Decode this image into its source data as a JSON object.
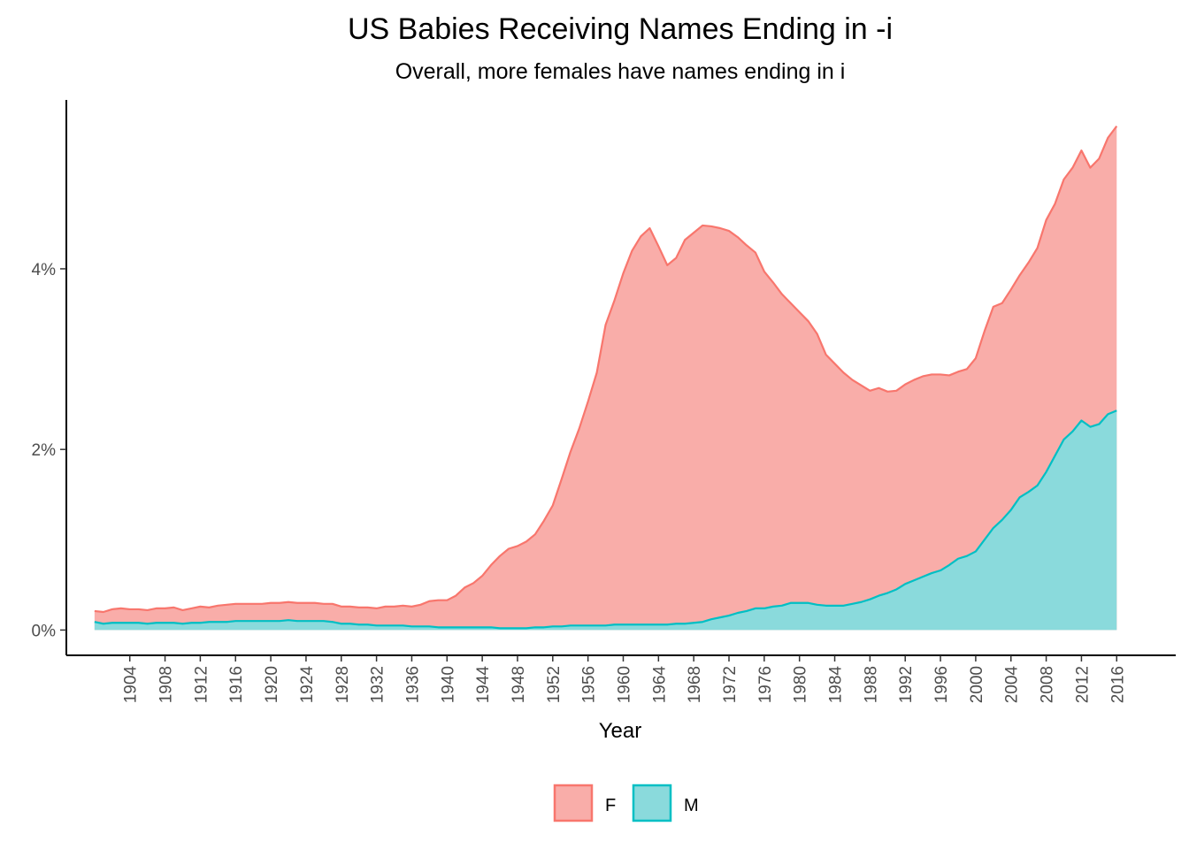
{
  "chart_data": {
    "type": "area",
    "title": "US Babies Receiving Names Ending in -i",
    "subtitle": "Overall, more females have names ending in i",
    "xlabel": "Year",
    "ylabel": "",
    "x_ticks": [
      1904,
      1908,
      1912,
      1916,
      1920,
      1924,
      1928,
      1932,
      1936,
      1940,
      1944,
      1948,
      1952,
      1956,
      1960,
      1964,
      1968,
      1972,
      1976,
      1980,
      1984,
      1988,
      1992,
      1996,
      2000,
      2004,
      2008,
      2012,
      2016
    ],
    "y_ticks": [
      0,
      2,
      4
    ],
    "y_tick_labels": [
      "0%",
      "2%",
      "4%"
    ],
    "xlim": [
      1896.8,
      2022.7
    ],
    "ylim": [
      -0.28,
      5.87
    ],
    "legend_position": "bottom",
    "stacked": false,
    "colors": {
      "F": "#F8766D",
      "M": "#00BFC4"
    },
    "series": [
      {
        "name": "F",
        "points": [
          [
            1900,
            0.21
          ],
          [
            1901,
            0.2
          ],
          [
            1902,
            0.23
          ],
          [
            1903,
            0.24
          ],
          [
            1904,
            0.23
          ],
          [
            1905,
            0.23
          ],
          [
            1906,
            0.22
          ],
          [
            1907,
            0.24
          ],
          [
            1908,
            0.24
          ],
          [
            1909,
            0.25
          ],
          [
            1910,
            0.22
          ],
          [
            1911,
            0.24
          ],
          [
            1912,
            0.26
          ],
          [
            1913,
            0.25
          ],
          [
            1914,
            0.27
          ],
          [
            1915,
            0.28
          ],
          [
            1916,
            0.29
          ],
          [
            1917,
            0.29
          ],
          [
            1918,
            0.29
          ],
          [
            1919,
            0.29
          ],
          [
            1920,
            0.3
          ],
          [
            1921,
            0.3
          ],
          [
            1922,
            0.31
          ],
          [
            1923,
            0.3
          ],
          [
            1924,
            0.3
          ],
          [
            1925,
            0.3
          ],
          [
            1926,
            0.29
          ],
          [
            1927,
            0.29
          ],
          [
            1928,
            0.26
          ],
          [
            1929,
            0.26
          ],
          [
            1930,
            0.25
          ],
          [
            1931,
            0.25
          ],
          [
            1932,
            0.24
          ],
          [
            1933,
            0.26
          ],
          [
            1934,
            0.26
          ],
          [
            1935,
            0.27
          ],
          [
            1936,
            0.26
          ],
          [
            1937,
            0.28
          ],
          [
            1938,
            0.32
          ],
          [
            1939,
            0.33
          ],
          [
            1940,
            0.33
          ],
          [
            1941,
            0.38
          ],
          [
            1942,
            0.47
          ],
          [
            1943,
            0.52
          ],
          [
            1944,
            0.6
          ],
          [
            1945,
            0.72
          ],
          [
            1946,
            0.82
          ],
          [
            1947,
            0.9
          ],
          [
            1948,
            0.93
          ],
          [
            1949,
            0.98
          ],
          [
            1950,
            1.06
          ],
          [
            1951,
            1.21
          ],
          [
            1952,
            1.38
          ],
          [
            1953,
            1.67
          ],
          [
            1954,
            1.97
          ],
          [
            1955,
            2.23
          ],
          [
            1956,
            2.53
          ],
          [
            1957,
            2.85
          ],
          [
            1958,
            3.38
          ],
          [
            1959,
            3.65
          ],
          [
            1960,
            3.95
          ],
          [
            1961,
            4.2
          ],
          [
            1962,
            4.36
          ],
          [
            1963,
            4.45
          ],
          [
            1964,
            4.25
          ],
          [
            1965,
            4.04
          ],
          [
            1966,
            4.12
          ],
          [
            1967,
            4.32
          ],
          [
            1968,
            4.4
          ],
          [
            1969,
            4.48
          ],
          [
            1970,
            4.47
          ],
          [
            1971,
            4.45
          ],
          [
            1972,
            4.42
          ],
          [
            1973,
            4.35
          ],
          [
            1974,
            4.26
          ],
          [
            1975,
            4.18
          ],
          [
            1976,
            3.97
          ],
          [
            1977,
            3.85
          ],
          [
            1978,
            3.72
          ],
          [
            1979,
            3.62
          ],
          [
            1980,
            3.52
          ],
          [
            1981,
            3.42
          ],
          [
            1982,
            3.28
          ],
          [
            1983,
            3.05
          ],
          [
            1984,
            2.95
          ],
          [
            1985,
            2.85
          ],
          [
            1986,
            2.77
          ],
          [
            1987,
            2.71
          ],
          [
            1988,
            2.65
          ],
          [
            1989,
            2.68
          ],
          [
            1990,
            2.64
          ],
          [
            1991,
            2.65
          ],
          [
            1992,
            2.72
          ],
          [
            1993,
            2.77
          ],
          [
            1994,
            2.81
          ],
          [
            1995,
            2.83
          ],
          [
            1996,
            2.83
          ],
          [
            1997,
            2.82
          ],
          [
            1998,
            2.86
          ],
          [
            1999,
            2.89
          ],
          [
            2000,
            3.01
          ],
          [
            2001,
            3.31
          ],
          [
            2002,
            3.58
          ],
          [
            2003,
            3.62
          ],
          [
            2004,
            3.77
          ],
          [
            2005,
            3.93
          ],
          [
            2006,
            4.07
          ],
          [
            2007,
            4.23
          ],
          [
            2008,
            4.54
          ],
          [
            2009,
            4.72
          ],
          [
            2010,
            4.99
          ],
          [
            2011,
            5.12
          ],
          [
            2012,
            5.31
          ],
          [
            2013,
            5.12
          ],
          [
            2014,
            5.22
          ],
          [
            2015,
            5.45
          ],
          [
            2016,
            5.58
          ]
        ]
      },
      {
        "name": "M",
        "points": [
          [
            1900,
            0.09
          ],
          [
            1901,
            0.07
          ],
          [
            1902,
            0.08
          ],
          [
            1903,
            0.08
          ],
          [
            1904,
            0.08
          ],
          [
            1905,
            0.08
          ],
          [
            1906,
            0.07
          ],
          [
            1907,
            0.08
          ],
          [
            1908,
            0.08
          ],
          [
            1909,
            0.08
          ],
          [
            1910,
            0.07
          ],
          [
            1911,
            0.08
          ],
          [
            1912,
            0.08
          ],
          [
            1913,
            0.09
          ],
          [
            1914,
            0.09
          ],
          [
            1915,
            0.09
          ],
          [
            1916,
            0.1
          ],
          [
            1917,
            0.1
          ],
          [
            1918,
            0.1
          ],
          [
            1919,
            0.1
          ],
          [
            1920,
            0.1
          ],
          [
            1921,
            0.1
          ],
          [
            1922,
            0.11
          ],
          [
            1923,
            0.1
          ],
          [
            1924,
            0.1
          ],
          [
            1925,
            0.1
          ],
          [
            1926,
            0.1
          ],
          [
            1927,
            0.09
          ],
          [
            1928,
            0.07
          ],
          [
            1929,
            0.07
          ],
          [
            1930,
            0.06
          ],
          [
            1931,
            0.06
          ],
          [
            1932,
            0.05
          ],
          [
            1933,
            0.05
          ],
          [
            1934,
            0.05
          ],
          [
            1935,
            0.05
          ],
          [
            1936,
            0.04
          ],
          [
            1937,
            0.04
          ],
          [
            1938,
            0.04
          ],
          [
            1939,
            0.03
          ],
          [
            1940,
            0.03
          ],
          [
            1941,
            0.03
          ],
          [
            1942,
            0.03
          ],
          [
            1943,
            0.03
          ],
          [
            1944,
            0.03
          ],
          [
            1945,
            0.03
          ],
          [
            1946,
            0.02
          ],
          [
            1947,
            0.02
          ],
          [
            1948,
            0.02
          ],
          [
            1949,
            0.02
          ],
          [
            1950,
            0.03
          ],
          [
            1951,
            0.03
          ],
          [
            1952,
            0.04
          ],
          [
            1953,
            0.04
          ],
          [
            1954,
            0.05
          ],
          [
            1955,
            0.05
          ],
          [
            1956,
            0.05
          ],
          [
            1957,
            0.05
          ],
          [
            1958,
            0.05
          ],
          [
            1959,
            0.06
          ],
          [
            1960,
            0.06
          ],
          [
            1961,
            0.06
          ],
          [
            1962,
            0.06
          ],
          [
            1963,
            0.06
          ],
          [
            1964,
            0.06
          ],
          [
            1965,
            0.06
          ],
          [
            1966,
            0.07
          ],
          [
            1967,
            0.07
          ],
          [
            1968,
            0.08
          ],
          [
            1969,
            0.09
          ],
          [
            1970,
            0.12
          ],
          [
            1971,
            0.14
          ],
          [
            1972,
            0.16
          ],
          [
            1973,
            0.19
          ],
          [
            1974,
            0.21
          ],
          [
            1975,
            0.24
          ],
          [
            1976,
            0.24
          ],
          [
            1977,
            0.26
          ],
          [
            1978,
            0.27
          ],
          [
            1979,
            0.3
          ],
          [
            1980,
            0.3
          ],
          [
            1981,
            0.3
          ],
          [
            1982,
            0.28
          ],
          [
            1983,
            0.27
          ],
          [
            1984,
            0.27
          ],
          [
            1985,
            0.27
          ],
          [
            1986,
            0.29
          ],
          [
            1987,
            0.31
          ],
          [
            1988,
            0.34
          ],
          [
            1989,
            0.38
          ],
          [
            1990,
            0.41
          ],
          [
            1991,
            0.45
          ],
          [
            1992,
            0.51
          ],
          [
            1993,
            0.55
          ],
          [
            1994,
            0.59
          ],
          [
            1995,
            0.63
          ],
          [
            1996,
            0.66
          ],
          [
            1997,
            0.72
          ],
          [
            1998,
            0.79
          ],
          [
            1999,
            0.82
          ],
          [
            2000,
            0.87
          ],
          [
            2001,
            1.0
          ],
          [
            2002,
            1.13
          ],
          [
            2003,
            1.22
          ],
          [
            2004,
            1.33
          ],
          [
            2005,
            1.47
          ],
          [
            2006,
            1.53
          ],
          [
            2007,
            1.6
          ],
          [
            2008,
            1.75
          ],
          [
            2009,
            1.93
          ],
          [
            2010,
            2.11
          ],
          [
            2011,
            2.2
          ],
          [
            2012,
            2.32
          ],
          [
            2013,
            2.25
          ],
          [
            2014,
            2.28
          ],
          [
            2015,
            2.39
          ],
          [
            2016,
            2.43
          ]
        ]
      }
    ]
  }
}
